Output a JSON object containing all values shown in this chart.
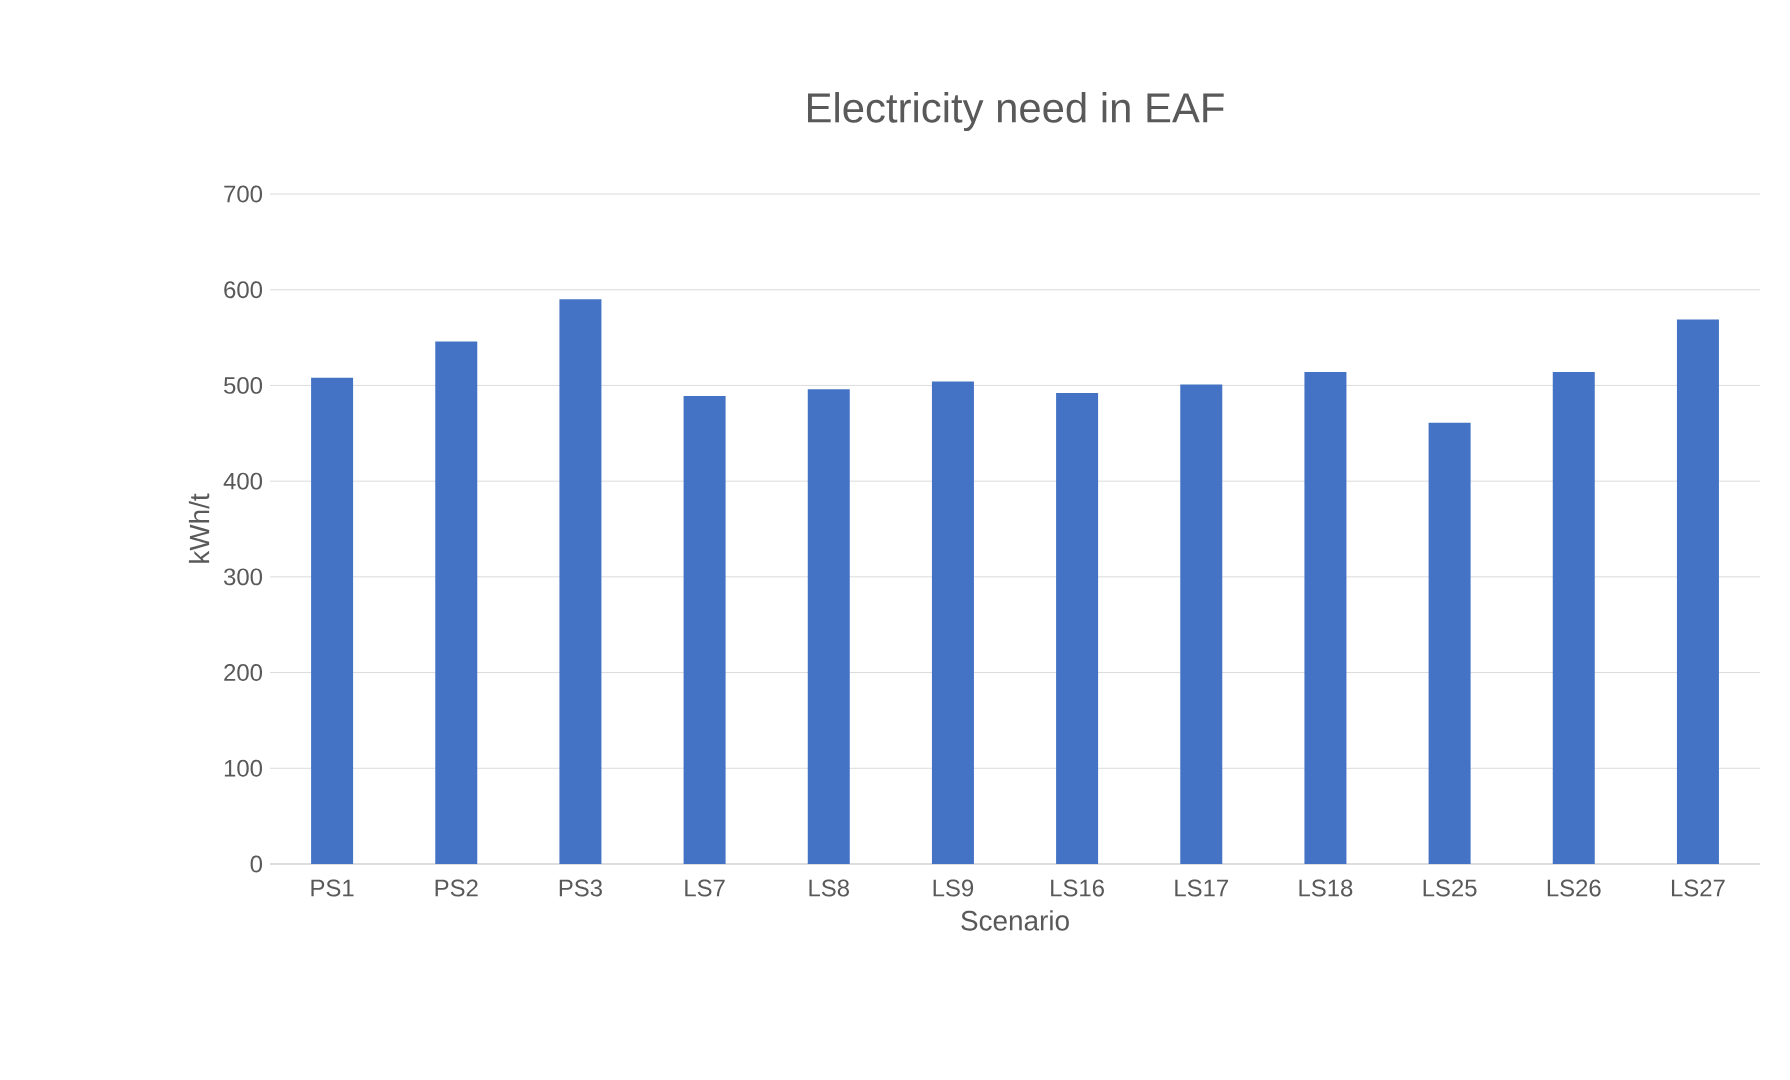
{
  "chart_data": {
    "type": "bar",
    "title": "Electricity need in EAF",
    "xlabel": "Scenario",
    "ylabel": "kWh/t",
    "categories": [
      "PS1",
      "PS2",
      "PS3",
      "LS7",
      "LS8",
      "LS9",
      "LS16",
      "LS17",
      "LS18",
      "LS25",
      "LS26",
      "LS27"
    ],
    "values": [
      508,
      546,
      590,
      489,
      496,
      504,
      492,
      501,
      514,
      461,
      514,
      569
    ],
    "color": "#4472c4",
    "ylim": [
      0,
      700
    ],
    "yticks": [
      0,
      100,
      200,
      300,
      400,
      500,
      600,
      700
    ],
    "grid": "y"
  }
}
